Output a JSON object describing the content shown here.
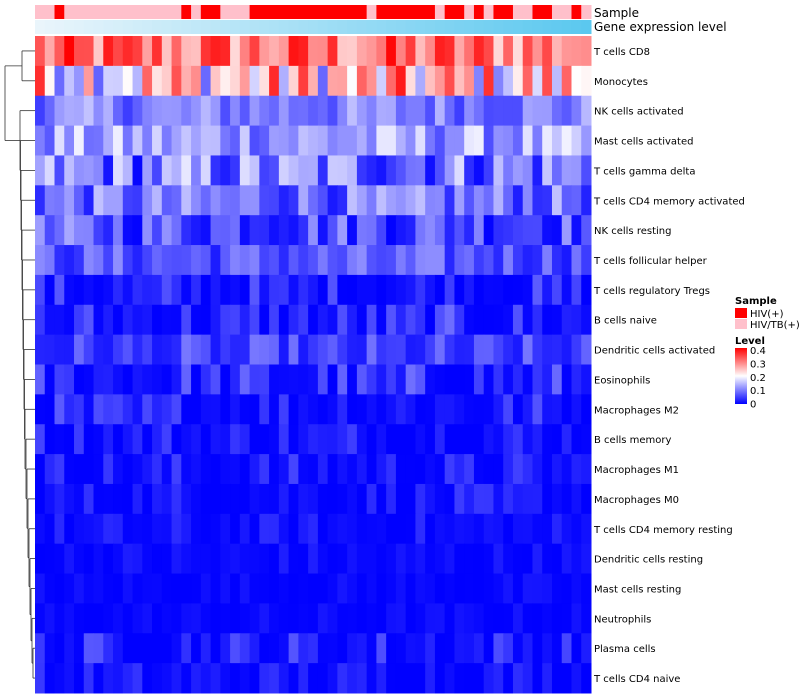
{
  "chart_data": {
    "type": "heatmap",
    "title": "",
    "annotations": {
      "sample_label": "Sample",
      "expression_label": "Gene expression level",
      "sample_groups": [
        "P",
        "P",
        "R",
        "P",
        "P",
        "P",
        "P",
        "P",
        "P",
        "P",
        "P",
        "P",
        "P",
        "P",
        "P",
        "R",
        "P",
        "R",
        "R",
        "P",
        "P",
        "P",
        "R",
        "R",
        "R",
        "R",
        "R",
        "R",
        "R",
        "R",
        "R",
        "R",
        "R",
        "R",
        "P",
        "R",
        "R",
        "R",
        "R",
        "R",
        "R",
        "P",
        "R",
        "R",
        "P",
        "R",
        "P",
        "R",
        "R",
        "P",
        "P",
        "R",
        "R",
        "P",
        "P",
        "R",
        "P"
      ],
      "expression_colors": [
        "#eaf5fb",
        "#5bc8ef"
      ]
    },
    "rows": [
      "T cells CD8",
      "Monocytes",
      "NK cells activated",
      "Mast cells activated",
      "T cells gamma delta",
      "T cells CD4 memory activated",
      "NK cells resting",
      "T cells follicular helper",
      "T cells regulatory  Tregs",
      "B cells naive",
      "Dendritic cells activated",
      "Eosinophils",
      "Macrophages M2",
      "B cells memory",
      "Macrophages M1",
      "Macrophages M0",
      "T cells CD4 memory resting",
      "Dendritic cells resting",
      "Mast cells resting",
      "Neutrophils",
      "Plasma cells",
      "T cells CD4 naive"
    ],
    "n_columns": 57,
    "row_level_ranges": [
      [
        0.22,
        0.42
      ],
      [
        0.08,
        0.4
      ],
      [
        0.05,
        0.16
      ],
      [
        0.06,
        0.2
      ],
      [
        0.0,
        0.2
      ],
      [
        0.02,
        0.16
      ],
      [
        0.0,
        0.14
      ],
      [
        0.02,
        0.12
      ],
      [
        0.0,
        0.08
      ],
      [
        0.0,
        0.09
      ],
      [
        0.02,
        0.1
      ],
      [
        0.0,
        0.1
      ],
      [
        0.0,
        0.08
      ],
      [
        0.0,
        0.07
      ],
      [
        0.0,
        0.06
      ],
      [
        0.0,
        0.05
      ],
      [
        0.0,
        0.04
      ],
      [
        0.0,
        0.03
      ],
      [
        0.0,
        0.02
      ],
      [
        0.0,
        0.02
      ],
      [
        0.0,
        0.08
      ],
      [
        0.0,
        0.05
      ]
    ],
    "legend": {
      "sample_title": "Sample",
      "sample_items": [
        {
          "key": "R",
          "label": "HIV(+)",
          "color": "#ff0000"
        },
        {
          "key": "P",
          "label": "HIV/TB(+)",
          "color": "#ffc0cb"
        }
      ],
      "level_title": "Level",
      "level_ticks": [
        "0.4",
        "0.3",
        "0.2",
        "0.1",
        "0"
      ],
      "level_range": [
        0,
        0.42
      ],
      "level_colors": [
        "#0000ff",
        "#ffffff",
        "#ff0000"
      ]
    }
  }
}
